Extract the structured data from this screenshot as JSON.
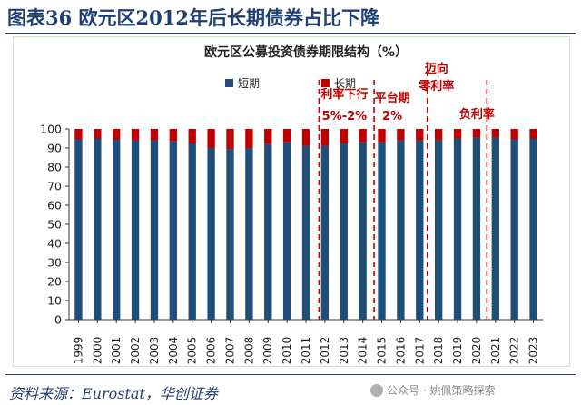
{
  "figure": {
    "label": "图表36 欧元区2012年后长期债券占比下降",
    "source": "资料来源：Eurostat，华创证券",
    "watermark": "公众号 · 姚佩策略探索",
    "watermark_icon": "wechat-icon"
  },
  "chart_data": {
    "type": "bar",
    "stacked": true,
    "title": "欧元区公募投资债券期限结构（%）",
    "categories": [
      "1999",
      "2000",
      "2001",
      "2002",
      "2003",
      "2004",
      "2005",
      "2006",
      "2007",
      "2008",
      "2009",
      "2010",
      "2011",
      "2012",
      "2013",
      "2014",
      "2015",
      "2016",
      "2017",
      "2018",
      "2019",
      "2020",
      "2021",
      "2022",
      "2023"
    ],
    "series": [
      {
        "name": "短期",
        "color": "#1f4e79",
        "values": [
          94.5,
          95,
          94.5,
          94,
          94,
          93.5,
          92.5,
          90,
          89.5,
          90,
          92,
          93,
          91,
          91,
          92.5,
          93,
          93,
          94,
          94,
          94,
          95,
          95.5,
          95.5,
          94.5,
          95
        ]
      },
      {
        "name": "长期",
        "color": "#c00000",
        "values": [
          5.5,
          5,
          5.5,
          6,
          6,
          6.5,
          7.5,
          10,
          10.5,
          10,
          8,
          7,
          9,
          9,
          7.5,
          7,
          7,
          6,
          6,
          6,
          5,
          4.5,
          4.5,
          5.5,
          5
        ]
      }
    ],
    "ylim": [
      0,
      100
    ],
    "yticks": [
      0,
      10,
      20,
      30,
      40,
      50,
      60,
      70,
      80,
      90,
      100
    ],
    "legend_position": "top-left",
    "annotations": [
      {
        "lines": [
          "利率下行",
          "5%-2%"
        ],
        "between": [
          "2011",
          "2012"
        ]
      },
      {
        "lines": [
          "平台期",
          "2%"
        ],
        "between": [
          "2015",
          "2016"
        ]
      },
      {
        "lines": [
          "迈向",
          "零利率"
        ],
        "between": [
          "2018",
          "2019"
        ]
      },
      {
        "lines": [
          "负利率"
        ],
        "between": [
          "2021",
          "2022"
        ]
      }
    ],
    "annotation_color": "#c00000",
    "axis_color": "#333333"
  }
}
